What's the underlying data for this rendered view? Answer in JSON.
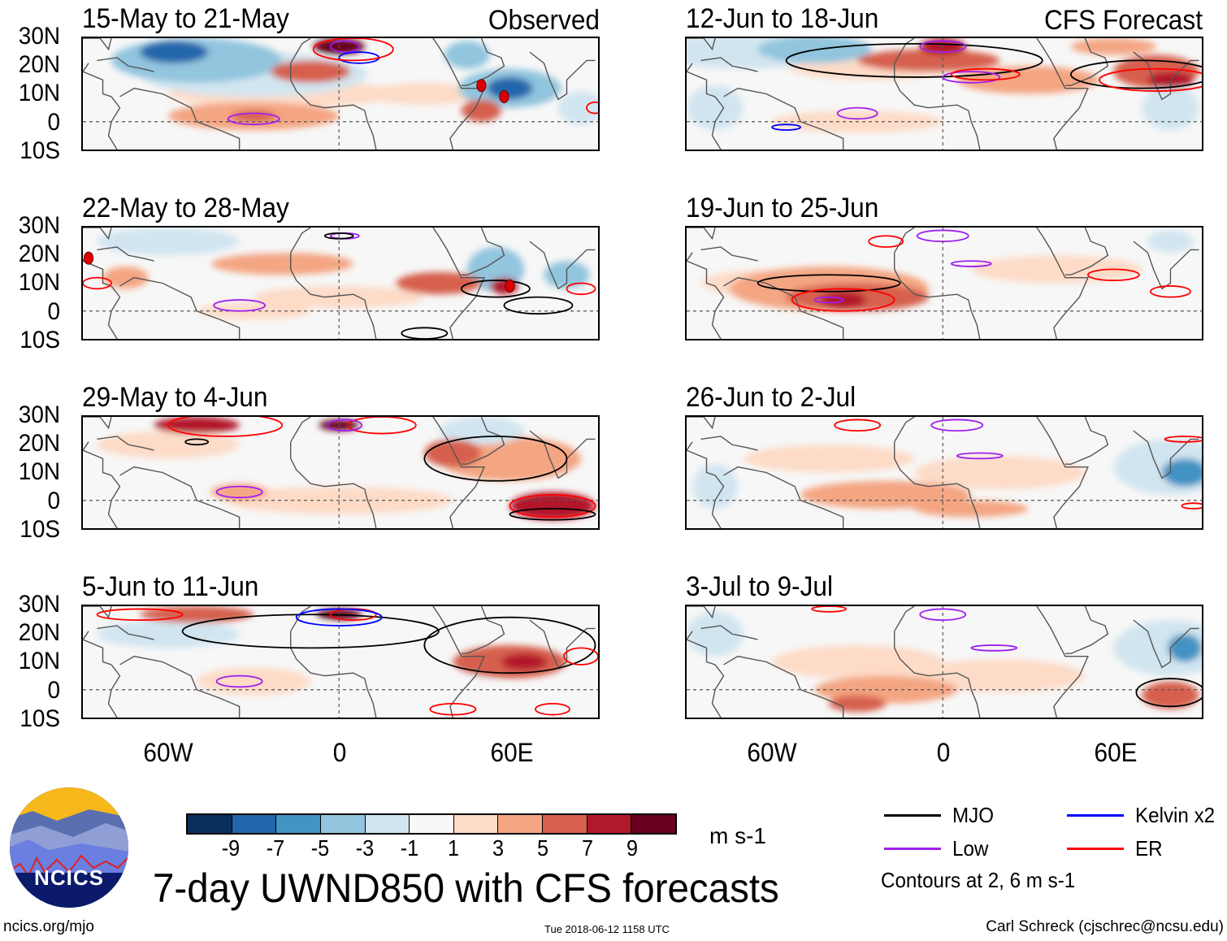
{
  "header": {
    "observed_label": "Observed",
    "forecast_label": "CFS Forecast"
  },
  "lat_labels": [
    "30N",
    "20N",
    "10N",
    "0",
    "10S"
  ],
  "lon_labels": [
    "60W",
    "0",
    "60E"
  ],
  "colorbar": {
    "colors": [
      "#0a2e5c",
      "#2166ac",
      "#4393c3",
      "#92c5de",
      "#d1e5f0",
      "#f7f7f7",
      "#fddbc7",
      "#f4a582",
      "#d6604d",
      "#b2182b",
      "#67001f"
    ],
    "tick_labels": [
      "-9",
      "-7",
      "-5",
      "-3",
      "-1",
      "1",
      "3",
      "5",
      "7",
      "9"
    ],
    "units": "m s-1"
  },
  "title": "7-day UWND850 with CFS forecasts",
  "legend": {
    "items": [
      {
        "label": "MJO",
        "color": "#000000"
      },
      {
        "label": "Kelvin x2",
        "color": "#0000ff"
      },
      {
        "label": "Low",
        "color": "#a020f0"
      },
      {
        "label": "ER",
        "color": "#ff0000"
      }
    ],
    "note": "Contours at 2, 6 m s-1"
  },
  "logo": {
    "text": "NCICS"
  },
  "footer": {
    "left": "ncics.org/mjo",
    "center": "Tue 2018-06-12 1158 UTC",
    "right": "Carl Schreck (cjschrec@ncsu.edu)"
  },
  "panels": [
    {
      "title": "15-May to 21-May",
      "fields": [
        [
          -58,
          25,
          -9,
          12,
          4
        ],
        [
          -50,
          22,
          -5,
          30,
          8
        ],
        [
          -30,
          17,
          -3,
          40,
          8
        ],
        [
          60,
          12,
          -9,
          8,
          4
        ],
        [
          60,
          12,
          -5,
          18,
          7
        ],
        [
          45,
          24,
          -5,
          8,
          5
        ],
        [
          85,
          5,
          -3,
          8,
          6
        ],
        [
          -75,
          5,
          -1,
          12,
          6
        ],
        [
          0,
          27,
          9,
          9,
          3
        ],
        [
          -10,
          18,
          5,
          14,
          4
        ],
        [
          -30,
          2,
          3,
          30,
          5
        ],
        [
          -30,
          2,
          5,
          8,
          2
        ],
        [
          50,
          4,
          5,
          7,
          4
        ],
        [
          -20,
          10,
          1,
          40,
          5
        ],
        [
          30,
          10,
          1,
          20,
          4
        ]
      ],
      "contours": [
        [
          -30,
          1,
          9,
          2,
          "#a020f0"
        ],
        [
          2,
          27,
          5,
          2,
          "#a020f0"
        ],
        [
          7,
          23,
          7,
          2,
          "#0000ff"
        ],
        [
          5,
          26,
          14,
          4,
          "#ff0000"
        ],
        [
          90,
          5,
          3,
          2,
          "#ff0000"
        ]
      ],
      "storms": [
        [
          50,
          13,
          "S"
        ],
        [
          58,
          9,
          "M"
        ]
      ]
    },
    {
      "title": "12-Jun to 18-Jun",
      "fields": [
        [
          -45,
          26,
          -5,
          20,
          5
        ],
        [
          -70,
          25,
          -3,
          30,
          6
        ],
        [
          -80,
          5,
          -3,
          10,
          8
        ],
        [
          80,
          5,
          -3,
          10,
          8
        ],
        [
          -25,
          20,
          1,
          30,
          5
        ],
        [
          -5,
          22,
          5,
          25,
          4
        ],
        [
          0,
          27,
          7,
          8,
          3
        ],
        [
          75,
          18,
          5,
          15,
          6
        ],
        [
          80,
          15,
          7,
          8,
          3
        ],
        [
          30,
          15,
          3,
          25,
          5
        ],
        [
          -30,
          0,
          1,
          30,
          4
        ],
        [
          60,
          27,
          3,
          15,
          3
        ]
      ],
      "contours": [
        [
          -10,
          22,
          45,
          6,
          "#000000"
        ],
        [
          70,
          17,
          25,
          5,
          "#000000"
        ],
        [
          0,
          27,
          8,
          2,
          "#a020f0"
        ],
        [
          10,
          16,
          10,
          2,
          "#a020f0"
        ],
        [
          -30,
          3,
          7,
          2,
          "#a020f0"
        ],
        [
          -55,
          -2,
          5,
          1,
          "#0000ff"
        ],
        [
          15,
          17,
          12,
          2,
          "#ff0000"
        ],
        [
          75,
          15,
          20,
          4,
          "#ff0000"
        ]
      ],
      "storms": []
    },
    {
      "title": "22-May to 28-May",
      "fields": [
        [
          -60,
          25,
          -3,
          25,
          5
        ],
        [
          55,
          15,
          -5,
          10,
          8
        ],
        [
          80,
          13,
          -5,
          8,
          5
        ],
        [
          -40,
          22,
          -1,
          20,
          5
        ],
        [
          -20,
          17,
          3,
          25,
          4
        ],
        [
          -75,
          12,
          3,
          8,
          4
        ],
        [
          35,
          10,
          5,
          15,
          4
        ],
        [
          58,
          9,
          7,
          5,
          3
        ],
        [
          0,
          5,
          1,
          30,
          4
        ],
        [
          -30,
          0,
          1,
          20,
          3
        ],
        [
          40,
          -5,
          -1,
          30,
          4
        ]
      ],
      "contours": [
        [
          -35,
          2,
          9,
          2,
          "#a020f0"
        ],
        [
          2,
          27,
          5,
          1,
          "#a020f0"
        ],
        [
          0,
          27,
          5,
          1,
          "#000000"
        ],
        [
          55,
          8,
          12,
          3,
          "#000000"
        ],
        [
          70,
          2,
          12,
          3,
          "#000000"
        ],
        [
          30,
          -8,
          8,
          2,
          "#000000"
        ],
        [
          85,
          8,
          5,
          2,
          "#ff0000"
        ],
        [
          -85,
          10,
          5,
          2,
          "#ff0000"
        ]
      ],
      "storms": [
        [
          -88,
          19,
          "A"
        ],
        [
          60,
          9,
          "M"
        ]
      ]
    },
    {
      "title": "19-Jun to 25-Jun",
      "fields": [
        [
          -30,
          5,
          5,
          25,
          5
        ],
        [
          -35,
          4,
          7,
          8,
          3
        ],
        [
          -40,
          8,
          3,
          35,
          8
        ],
        [
          -60,
          10,
          1,
          25,
          5
        ],
        [
          40,
          15,
          1,
          30,
          5
        ],
        [
          -40,
          25,
          -1,
          25,
          4
        ],
        [
          60,
          5,
          -1,
          30,
          4
        ],
        [
          80,
          25,
          -3,
          8,
          4
        ]
      ],
      "contours": [
        [
          -40,
          10,
          25,
          3,
          "#000000"
        ],
        [
          -35,
          4,
          18,
          4,
          "#ff0000"
        ],
        [
          0,
          27,
          9,
          2,
          "#a020f0"
        ],
        [
          10,
          17,
          7,
          1,
          "#a020f0"
        ],
        [
          -40,
          4,
          5,
          1,
          "#a020f0"
        ],
        [
          -20,
          25,
          6,
          2,
          "#ff0000"
        ],
        [
          60,
          13,
          9,
          2,
          "#ff0000"
        ],
        [
          80,
          7,
          7,
          2,
          "#ff0000"
        ]
      ],
      "storms": []
    },
    {
      "title": "29-May to 4-Jun",
      "fields": [
        [
          -50,
          27,
          7,
          15,
          3
        ],
        [
          0,
          27,
          9,
          7,
          2
        ],
        [
          40,
          17,
          5,
          10,
          5
        ],
        [
          60,
          15,
          3,
          25,
          8
        ],
        [
          75,
          -2,
          7,
          15,
          5
        ],
        [
          -35,
          3,
          3,
          10,
          3
        ],
        [
          -75,
          5,
          -1,
          15,
          10
        ],
        [
          50,
          25,
          -3,
          15,
          5
        ],
        [
          -60,
          20,
          1,
          25,
          5
        ],
        [
          0,
          0,
          1,
          40,
          5
        ]
      ],
      "contours": [
        [
          -40,
          27,
          20,
          4,
          "#ff0000"
        ],
        [
          15,
          27,
          12,
          3,
          "#ff0000"
        ],
        [
          2,
          27,
          6,
          2,
          "#a020f0"
        ],
        [
          -35,
          3,
          8,
          2,
          "#a020f0"
        ],
        [
          -50,
          21,
          4,
          1,
          "#000000"
        ],
        [
          55,
          15,
          25,
          8,
          "#000000"
        ],
        [
          75,
          -2,
          15,
          4,
          "#ff0000"
        ],
        [
          75,
          -5,
          15,
          2,
          "#000000"
        ]
      ],
      "storms": []
    },
    {
      "title": "26-Jun to 2-Jul",
      "fields": [
        [
          85,
          10,
          -7,
          8,
          5
        ],
        [
          80,
          12,
          -3,
          20,
          10
        ],
        [
          -80,
          5,
          -3,
          8,
          8
        ],
        [
          -20,
          2,
          3,
          30,
          5
        ],
        [
          20,
          10,
          1,
          30,
          6
        ],
        [
          -40,
          15,
          1,
          30,
          5
        ],
        [
          10,
          -3,
          3,
          20,
          3
        ]
      ],
      "contours": [
        [
          -30,
          27,
          8,
          2,
          "#ff0000"
        ],
        [
          5,
          27,
          9,
          2,
          "#a020f0"
        ],
        [
          13,
          16,
          8,
          1,
          "#a020f0"
        ],
        [
          85,
          22,
          7,
          1,
          "#ff0000"
        ],
        [
          88,
          -2,
          4,
          1,
          "#ff0000"
        ]
      ],
      "storms": []
    },
    {
      "title": "5-Jun to 11-Jun",
      "fields": [
        [
          -50,
          27,
          5,
          20,
          3
        ],
        [
          0,
          27,
          9,
          8,
          2
        ],
        [
          60,
          10,
          5,
          20,
          6
        ],
        [
          65,
          10,
          7,
          8,
          3
        ],
        [
          -60,
          20,
          -3,
          25,
          5
        ],
        [
          -20,
          20,
          -1,
          20,
          5
        ],
        [
          30,
          0,
          -1,
          30,
          6
        ],
        [
          -30,
          3,
          1,
          20,
          5
        ]
      ],
      "contours": [
        [
          -35,
          3,
          8,
          2,
          "#a020f0"
        ],
        [
          -10,
          21,
          45,
          6,
          "#000000"
        ],
        [
          60,
          16,
          30,
          10,
          "#000000"
        ],
        [
          5,
          27,
          8,
          2,
          "#ff0000"
        ],
        [
          -70,
          27,
          15,
          2,
          "#ff0000"
        ],
        [
          85,
          12,
          6,
          3,
          "#ff0000"
        ],
        [
          40,
          -7,
          8,
          2,
          "#ff0000"
        ],
        [
          75,
          -7,
          6,
          2,
          "#ff0000"
        ],
        [
          0,
          26,
          15,
          3,
          "#0000ff"
        ]
      ],
      "storms": []
    },
    {
      "title": "3-Jul to 9-Jul",
      "fields": [
        [
          85,
          15,
          -7,
          6,
          5
        ],
        [
          80,
          15,
          -3,
          20,
          10
        ],
        [
          -80,
          20,
          -3,
          10,
          8
        ],
        [
          -20,
          0,
          3,
          25,
          5
        ],
        [
          -30,
          -5,
          5,
          10,
          3
        ],
        [
          80,
          -2,
          5,
          10,
          5
        ],
        [
          -30,
          10,
          1,
          30,
          6
        ],
        [
          20,
          5,
          1,
          30,
          6
        ]
      ],
      "contours": [
        [
          0,
          27,
          8,
          2,
          "#a020f0"
        ],
        [
          18,
          15,
          8,
          1,
          "#a020f0"
        ],
        [
          80,
          -1,
          12,
          5,
          "#000000"
        ],
        [
          -40,
          29,
          6,
          1,
          "#ff0000"
        ]
      ],
      "storms": []
    }
  ]
}
